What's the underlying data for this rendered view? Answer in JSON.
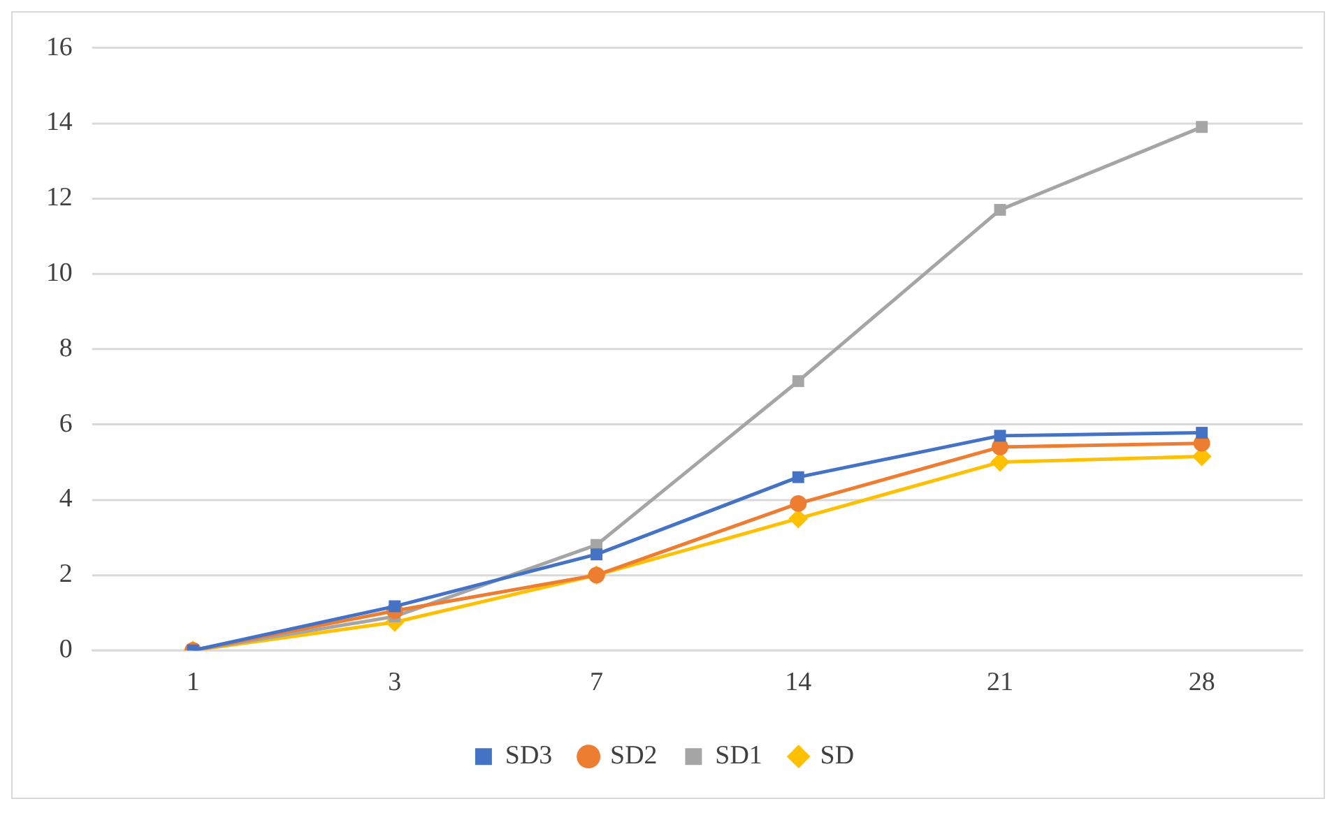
{
  "chart_data": {
    "type": "line",
    "categories": [
      "1",
      "3",
      "7",
      "14",
      "21",
      "28"
    ],
    "ylim": [
      0,
      16
    ],
    "yticks": [
      0,
      2,
      4,
      6,
      8,
      10,
      12,
      14,
      16
    ],
    "grid": "y",
    "legend": "bottom",
    "line_style": "solid",
    "series": [
      {
        "name": "SD3",
        "color": "#4472c4",
        "marker": "square",
        "values": [
          0,
          1.17,
          2.55,
          4.6,
          5.7,
          5.78
        ]
      },
      {
        "name": "SD2",
        "color": "#ed7d31",
        "marker": "circle",
        "values": [
          0,
          1.05,
          2.0,
          3.9,
          5.4,
          5.5
        ]
      },
      {
        "name": "SD1",
        "color": "#a5a5a5",
        "marker": "square",
        "values": [
          0,
          0.9,
          2.8,
          7.15,
          11.7,
          13.9
        ]
      },
      {
        "name": "SD",
        "color": "#ffc000",
        "marker": "diamond",
        "values": [
          0,
          0.75,
          2.0,
          3.5,
          5.0,
          5.15
        ]
      }
    ]
  }
}
